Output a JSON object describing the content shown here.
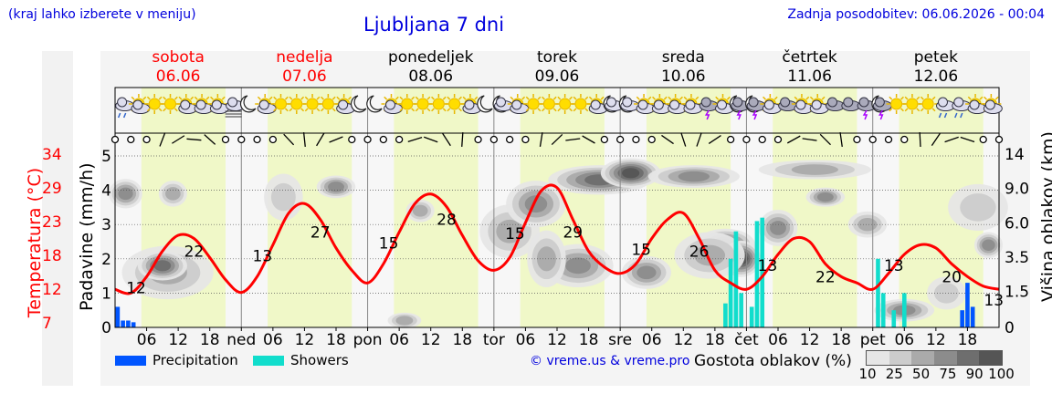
{
  "header": {
    "note": "(kraj lahko izberete v meniju)",
    "title": "Ljubljana 7 dni",
    "updated": "Zadnja posodobitev: 06.06.2026 - 00:04"
  },
  "days": [
    {
      "name": "sobota",
      "date": "06.06",
      "color": "#ff0000"
    },
    {
      "name": "nedelja",
      "date": "07.06",
      "color": "#ff0000"
    },
    {
      "name": "ponedeljek",
      "date": "08.06",
      "color": "#000000"
    },
    {
      "name": "torek",
      "date": "09.06",
      "color": "#000000"
    },
    {
      "name": "sreda",
      "date": "10.06",
      "color": "#000000"
    },
    {
      "name": "četrtek",
      "date": "11.06",
      "color": "#000000"
    },
    {
      "name": "petek",
      "date": "12.06",
      "color": "#000000"
    }
  ],
  "colors": {
    "temperature": "#ff0000",
    "precipitation": "#0055ff",
    "showers": "#11ddcc",
    "daylight": "#f0f8c8",
    "link": "#0000dd"
  },
  "chart_data": {
    "type": "line",
    "x_unit": "hours from 06.06 00:00",
    "xlim": [
      0,
      168
    ],
    "x_tick_labels": [
      "06",
      "12",
      "18",
      "ned",
      "06",
      "12",
      "18",
      "pon",
      "06",
      "12",
      "18",
      "tor",
      "06",
      "12",
      "18",
      "sre",
      "06",
      "12",
      "18",
      "čet",
      "06",
      "12",
      "18",
      "pet",
      "06",
      "12",
      "18"
    ],
    "y_left_label": "Padavine (mm/h)",
    "y_left_ticks": [
      "0",
      "1",
      "2",
      "3",
      "4",
      "5"
    ],
    "ylim_precip": [
      0,
      5
    ],
    "y_temp_label": "Temperatura (°C)",
    "y_temp_ticks": [
      "7",
      "12",
      "18",
      "23",
      "29",
      "34"
    ],
    "ylim_temp": [
      7,
      34
    ],
    "y_right_label": "Višina oblakov (km)",
    "y_right_ticks": [
      "0",
      "1.5",
      "3.5",
      "6.0",
      "9.0",
      "14"
    ],
    "temperature_series": {
      "hours": [
        0,
        3,
        6,
        9,
        12,
        15,
        18,
        21,
        24,
        27,
        30,
        33,
        36,
        39,
        42,
        45,
        48,
        51,
        54,
        57,
        60,
        63,
        66,
        69,
        72,
        75,
        78,
        81,
        84,
        87,
        90,
        93,
        96,
        99,
        102,
        105,
        108,
        111,
        114,
        117,
        120,
        123,
        126,
        129,
        132,
        135,
        138,
        141,
        144,
        147,
        150,
        153,
        156,
        159,
        162,
        165,
        168
      ],
      "values": [
        13,
        12.4,
        15,
        19,
        21.5,
        21,
        18,
        14.5,
        12.5,
        15,
        20,
        25,
        26.5,
        24,
        19.5,
        16,
        14,
        17,
        22,
        26.5,
        28,
        26,
        21.5,
        17.5,
        16,
        18,
        23.5,
        28.5,
        29,
        24,
        19,
        16.5,
        15.5,
        17,
        21,
        24,
        25,
        21,
        16,
        14,
        13,
        15,
        18.5,
        21,
        20.5,
        17,
        15,
        14,
        13,
        15.5,
        18.5,
        20,
        19.5,
        17,
        15,
        13.5,
        13
      ]
    },
    "temperature_labels": [
      {
        "hour": 4,
        "value": "12"
      },
      {
        "hour": 15,
        "value": "22"
      },
      {
        "hour": 28,
        "value": "13"
      },
      {
        "hour": 39,
        "value": "27"
      },
      {
        "hour": 52,
        "value": "15"
      },
      {
        "hour": 63,
        "value": "28"
      },
      {
        "hour": 76,
        "value": "15"
      },
      {
        "hour": 87,
        "value": "29"
      },
      {
        "hour": 100,
        "value": "15"
      },
      {
        "hour": 111,
        "value": "26"
      },
      {
        "hour": 124,
        "value": "13"
      },
      {
        "hour": 135,
        "value": "22"
      },
      {
        "hour": 148,
        "value": "13"
      },
      {
        "hour": 159,
        "value": "20"
      },
      {
        "hour": 167,
        "value": "13"
      }
    ],
    "precipitation": [
      {
        "hour": 0.5,
        "mm": 0.6
      },
      {
        "hour": 1.5,
        "mm": 0.2
      },
      {
        "hour": 2.5,
        "mm": 0.2
      },
      {
        "hour": 3.5,
        "mm": 0.15
      },
      {
        "hour": 161,
        "mm": 0.5
      },
      {
        "hour": 162,
        "mm": 1.3
      },
      {
        "hour": 163,
        "mm": 0.6
      }
    ],
    "showers": [
      {
        "hour": 116,
        "mm": 0.7
      },
      {
        "hour": 117,
        "mm": 2.0
      },
      {
        "hour": 118,
        "mm": 2.8
      },
      {
        "hour": 119,
        "mm": 1.0
      },
      {
        "hour": 121,
        "mm": 0.6
      },
      {
        "hour": 122,
        "mm": 3.1
      },
      {
        "hour": 123,
        "mm": 3.2
      },
      {
        "hour": 145,
        "mm": 2.0
      },
      {
        "hour": 146,
        "mm": 1.0
      },
      {
        "hour": 148,
        "mm": 0.5
      },
      {
        "hour": 150,
        "mm": 1.0
      }
    ],
    "cloud_density_scale": {
      "title": "Gostota oblakov (%)",
      "levels": [
        "10",
        "25",
        "50",
        "75",
        "90",
        "100"
      ],
      "colors": [
        "#e6e6e6",
        "#cccccc",
        "#aaaaaa",
        "#8c8c8c",
        "#6e6e6e",
        "#555555"
      ]
    },
    "legend": [
      {
        "name": "Precipitation",
        "color": "#0055ff"
      },
      {
        "name": "Showers",
        "color": "#11ddcc"
      }
    ],
    "grid": true
  },
  "weather_icons": [
    "cloud-rain",
    "sun-cloud",
    "sun",
    "sun",
    "sun-cloud",
    "sun-cloud",
    "sun-cloud",
    "fog",
    "moon",
    "sun-cloud",
    "sun",
    "sun",
    "sun",
    "sun",
    "sun-cloud",
    "moon",
    "moon",
    "sun-cloud",
    "sun",
    "sun",
    "sun",
    "sun",
    "sun-cloud",
    "moon",
    "moon-cloud",
    "sun-cloud",
    "sun",
    "sun",
    "sun",
    "sun",
    "sun-cloud",
    "moon-cloud",
    "moon-cloud",
    "sun-cloud",
    "sun-cloud",
    "sun-cloud",
    "sun-cloud",
    "storm",
    "sun-cloud",
    "moon-storm",
    "moon-storm",
    "sun-cloud",
    "cloud",
    "sun-cloud",
    "sun-cloud",
    "cloud",
    "cloud",
    "storm",
    "moon-storm",
    "sun",
    "sun",
    "sun",
    "cloud-rain",
    "cloud-rain",
    "sun-cloud",
    "sun-cloud"
  ],
  "footer": {
    "credit": "© vreme.us & vreme.pro"
  }
}
